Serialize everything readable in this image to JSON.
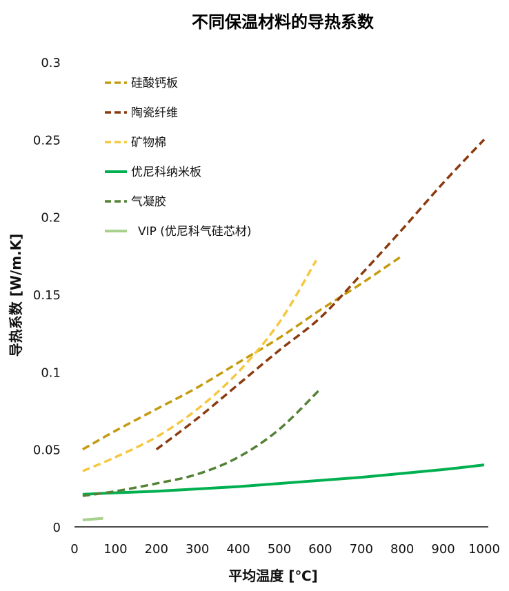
{
  "chart_data": {
    "type": "line",
    "title": "不同保温材料的导热系数",
    "xlabel": "平均温度 [℃]",
    "ylabel": "导热系数 [W/m.K]",
    "xlim": [
      0,
      1000
    ],
    "ylim": [
      0,
      0.3
    ],
    "x_ticks": [
      "0",
      "100",
      "200",
      "300",
      "400",
      "500",
      "600",
      "700",
      "800",
      "900",
      "1000"
    ],
    "y_ticks": [
      "0",
      "0.05",
      "0.1",
      "0.15",
      "0.2",
      "0.25",
      "0.3"
    ],
    "grid": false,
    "legend_position": "top-left",
    "series": [
      {
        "name": "硅酸钙板",
        "color": "#C49A0E",
        "dash": "dashed",
        "points": [
          [
            20,
            0.05
          ],
          [
            100,
            0.062
          ],
          [
            200,
            0.076
          ],
          [
            300,
            0.09
          ],
          [
            400,
            0.106
          ],
          [
            500,
            0.122
          ],
          [
            600,
            0.14
          ],
          [
            700,
            0.157
          ],
          [
            800,
            0.175
          ]
        ]
      },
      {
        "name": "陶瓷纤维",
        "color": "#8B3A0F",
        "dash": "dashed",
        "points": [
          [
            200,
            0.05
          ],
          [
            300,
            0.07
          ],
          [
            400,
            0.092
          ],
          [
            500,
            0.114
          ],
          [
            600,
            0.135
          ],
          [
            700,
            0.163
          ],
          [
            800,
            0.192
          ],
          [
            900,
            0.222
          ],
          [
            1000,
            0.25
          ]
        ]
      },
      {
        "name": "矿物棉",
        "color": "#F5C842",
        "dash": "dashed",
        "points": [
          [
            20,
            0.036
          ],
          [
            100,
            0.045
          ],
          [
            200,
            0.058
          ],
          [
            300,
            0.076
          ],
          [
            400,
            0.1
          ],
          [
            500,
            0.132
          ],
          [
            590,
            0.172
          ]
        ]
      },
      {
        "name": "优尼科纳米板",
        "color": "#00B050",
        "dash": "solid",
        "points": [
          [
            20,
            0.021
          ],
          [
            100,
            0.022
          ],
          [
            200,
            0.023
          ],
          [
            300,
            0.0245
          ],
          [
            400,
            0.026
          ],
          [
            500,
            0.028
          ],
          [
            600,
            0.03
          ],
          [
            700,
            0.032
          ],
          [
            800,
            0.0345
          ],
          [
            900,
            0.037
          ],
          [
            1000,
            0.04
          ]
        ]
      },
      {
        "name": "气凝胶",
        "color": "#548235",
        "dash": "dashed",
        "points": [
          [
            20,
            0.02
          ],
          [
            100,
            0.023
          ],
          [
            200,
            0.028
          ],
          [
            300,
            0.034
          ],
          [
            400,
            0.045
          ],
          [
            500,
            0.063
          ],
          [
            600,
            0.089
          ]
        ]
      },
      {
        "name": "VIP (优尼科气硅芯材)",
        "color": "#A9D18E",
        "dash": "solid",
        "points": [
          [
            20,
            0.0045
          ],
          [
            70,
            0.0055
          ]
        ]
      }
    ]
  }
}
